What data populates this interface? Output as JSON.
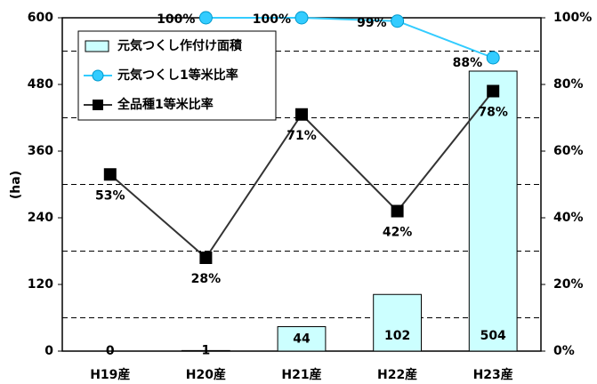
{
  "chart_data": {
    "type": "bar_line",
    "y_label": "(ha)",
    "categories": [
      "H19産",
      "H20産",
      "H21産",
      "H22産",
      "H23産"
    ],
    "series": [
      {
        "name": "元気つくし作付け面積",
        "type": "bar",
        "color": "#ccffff",
        "values": [
          0,
          1,
          44,
          102,
          504
        ]
      },
      {
        "name": "元気つくし1等米比率",
        "type": "line",
        "axis": "y2",
        "color": "#33ccff",
        "marker": "circle",
        "values": [
          null,
          100,
          100,
          99,
          88
        ],
        "value_labels": [
          null,
          "100%",
          "100%",
          "99%",
          "88%"
        ]
      },
      {
        "name": "全品種1等米比率",
        "type": "line",
        "axis": "y2",
        "color": "#000000",
        "marker": "square",
        "values": [
          53,
          28,
          71,
          42,
          78
        ],
        "value_labels": [
          "53%",
          "28%",
          "71%",
          "42%",
          "78%"
        ]
      }
    ],
    "ylim": [
      0,
      600
    ],
    "yticks": [
      0,
      120,
      240,
      360,
      480,
      600
    ],
    "y2lim": [
      0,
      100
    ],
    "y2ticks": [
      {
        "value": 0,
        "label": "0%"
      },
      {
        "value": 20,
        "label": "20%"
      },
      {
        "value": 40,
        "label": "40%"
      },
      {
        "value": 60,
        "label": "60%"
      },
      {
        "value": 80,
        "label": "80%"
      },
      {
        "value": 100,
        "label": "100%"
      }
    ],
    "grid": [
      60,
      180,
      300,
      420,
      540
    ],
    "legend": "upper left"
  }
}
